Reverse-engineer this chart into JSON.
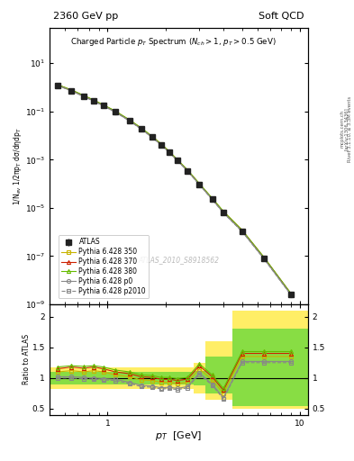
{
  "title_left": "2360 GeV pp",
  "title_right": "Soft QCD",
  "plot_title": "Charged Particle $p_T$ Spectrum ($N_{ch} > 1$, $p_T > 0.5$ GeV)",
  "ylabel_main": "1/N$_{ev}$ 1/2πp$_T$ dσ/dηdp$_T$",
  "ylabel_ratio": "Ratio to ATLAS",
  "xlabel": "$p_T$  [GeV]",
  "right_label": "Rivet 3.1.10, ≥ 3.3M events",
  "watermark": "ATLAS_2010_S8918562",
  "arxiv": "[arXiv:1306.3436]",
  "mcplots": "mcplots.cern.ch",
  "pt_values": [
    0.55,
    0.65,
    0.75,
    0.85,
    0.95,
    1.1,
    1.3,
    1.5,
    1.7,
    1.9,
    2.1,
    2.3,
    2.6,
    3.0,
    3.5,
    4.0,
    5.0,
    6.5,
    9.0
  ],
  "atlas_y": [
    1.2,
    0.72,
    0.43,
    0.27,
    0.175,
    0.095,
    0.042,
    0.019,
    0.0088,
    0.0042,
    0.002,
    0.00095,
    0.00035,
    9.5e-05,
    2.3e-05,
    6.5e-06,
    1.1e-06,
    8e-08,
    2.5e-09
  ],
  "atlas_yerr_lo": [
    0.06,
    0.04,
    0.02,
    0.013,
    0.009,
    0.005,
    0.002,
    0.001,
    0.0005,
    0.0002,
    0.0001,
    5e-05,
    2e-05,
    5e-06,
    1.5e-06,
    5e-07,
    8e-08,
    7e-09,
    3e-10
  ],
  "pythia350_y": [
    1.22,
    0.73,
    0.44,
    0.28,
    0.178,
    0.097,
    0.043,
    0.0195,
    0.009,
    0.0043,
    0.00205,
    0.00097,
    0.00036,
    9.8e-05,
    2.4e-05,
    6.8e-06,
    1.15e-06,
    8.5e-08,
    2.6e-09
  ],
  "pythia370_y": [
    1.28,
    0.77,
    0.46,
    0.29,
    0.186,
    0.101,
    0.044,
    0.02,
    0.0092,
    0.0044,
    0.0021,
    0.001,
    0.00037,
    0.0001,
    2.4e-05,
    7e-06,
    1.18e-06,
    8.7e-08,
    2.65e-09
  ],
  "pythia380_y": [
    1.3,
    0.78,
    0.47,
    0.295,
    0.19,
    0.103,
    0.045,
    0.0205,
    0.0095,
    0.0045,
    0.00215,
    0.00102,
    0.00038,
    0.000102,
    2.5e-05,
    7.2e-06,
    1.2e-06,
    8.9e-08,
    2.7e-09
  ],
  "pythiap0_y": [
    1.21,
    0.72,
    0.43,
    0.27,
    0.174,
    0.094,
    0.041,
    0.0185,
    0.0086,
    0.0041,
    0.00196,
    0.00093,
    0.000345,
    9.3e-05,
    2.25e-05,
    6.3e-06,
    1.06e-06,
    7.8e-08,
    2.4e-09
  ],
  "pythiap2010_y": [
    1.19,
    0.71,
    0.42,
    0.266,
    0.172,
    0.093,
    0.0405,
    0.0183,
    0.0085,
    0.00405,
    0.00193,
    0.00092,
    0.00034,
    9.1e-05,
    2.2e-05,
    6.2e-06,
    1.04e-06,
    7.6e-08,
    2.35e-09
  ],
  "ratio_350": [
    1.1,
    1.12,
    1.1,
    1.12,
    1.1,
    1.05,
    1.02,
    0.97,
    0.96,
    0.93,
    0.93,
    0.91,
    0.93,
    1.15,
    0.97,
    0.75,
    1.35,
    1.35,
    1.35
  ],
  "ratio_370": [
    1.15,
    1.18,
    1.16,
    1.18,
    1.15,
    1.1,
    1.07,
    1.02,
    1.01,
    0.98,
    0.98,
    0.96,
    0.98,
    1.2,
    1.02,
    0.8,
    1.4,
    1.4,
    1.4
  ],
  "ratio_380": [
    1.18,
    1.2,
    1.19,
    1.2,
    1.18,
    1.13,
    1.1,
    1.05,
    1.04,
    1.01,
    1.01,
    0.99,
    1.01,
    1.23,
    1.05,
    0.83,
    1.43,
    1.43,
    1.43
  ],
  "ratio_p0": [
    1.02,
    1.02,
    1.01,
    1.0,
    0.99,
    0.98,
    0.93,
    0.88,
    0.87,
    0.84,
    0.85,
    0.83,
    0.86,
    1.08,
    0.9,
    0.68,
    1.27,
    1.27,
    1.27
  ],
  "ratio_p2010": [
    1.0,
    1.0,
    0.99,
    0.98,
    0.97,
    0.96,
    0.91,
    0.86,
    0.85,
    0.82,
    0.83,
    0.81,
    0.84,
    1.06,
    0.88,
    0.66,
    1.25,
    1.25,
    1.25
  ],
  "color_350": "#c8b400",
  "color_370": "#cc2200",
  "color_380": "#66bb00",
  "color_p0": "#888888",
  "color_p2010": "#888888",
  "color_atlas": "#222222",
  "band_yellow_lo": [
    0.82,
    0.82,
    0.82,
    0.82,
    0.82,
    0.82,
    0.82,
    0.82,
    0.82,
    0.82,
    0.82,
    0.82,
    0.82,
    0.75,
    0.65,
    0.65,
    0.5,
    0.5,
    0.5
  ],
  "band_yellow_hi": [
    1.18,
    1.18,
    1.18,
    1.18,
    1.18,
    1.18,
    1.18,
    1.18,
    1.18,
    1.18,
    1.18,
    1.18,
    1.18,
    1.25,
    1.6,
    1.6,
    2.1,
    2.1,
    2.1
  ],
  "band_green_lo": [
    0.9,
    0.9,
    0.9,
    0.9,
    0.9,
    0.9,
    0.9,
    0.9,
    0.9,
    0.9,
    0.9,
    0.9,
    0.9,
    0.88,
    0.75,
    0.75,
    0.55,
    0.55,
    0.55
  ],
  "band_green_hi": [
    1.1,
    1.1,
    1.1,
    1.1,
    1.1,
    1.1,
    1.1,
    1.1,
    1.1,
    1.1,
    1.1,
    1.1,
    1.1,
    1.12,
    1.35,
    1.35,
    1.8,
    1.8,
    1.8
  ],
  "xlim": [
    0.5,
    11.0
  ],
  "ylim_main": [
    1e-09,
    300
  ],
  "ylim_ratio": [
    0.4,
    2.2
  ],
  "ratio_yticks": [
    0.5,
    1.0,
    1.5,
    2.0
  ],
  "ratio_ytick_labels": [
    "0.5",
    "1",
    "1.5",
    "2"
  ]
}
